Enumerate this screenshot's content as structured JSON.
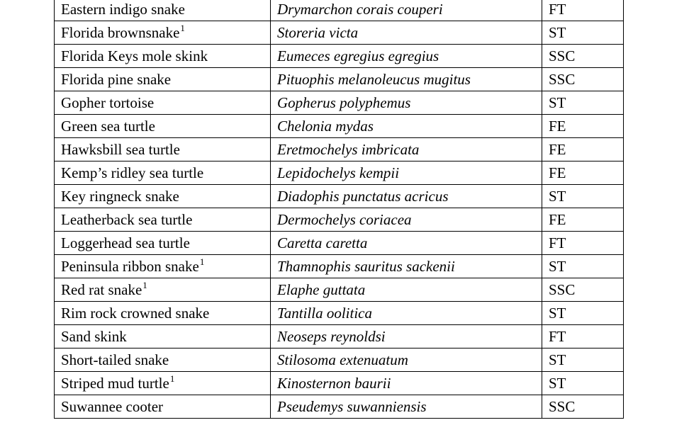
{
  "table": {
    "rows": [
      {
        "common": "Eastern indigo snake",
        "footnote": "",
        "scientific": "Drymarchon corais couperi",
        "status": "FT"
      },
      {
        "common": "Florida brownsnake",
        "footnote": "1",
        "scientific": "Storeria victa",
        "status": "ST"
      },
      {
        "common": "Florida Keys mole skink",
        "footnote": "",
        "scientific": "Eumeces egregius egregius",
        "status": "SSC"
      },
      {
        "common": "Florida pine snake",
        "footnote": "",
        "scientific": "Pituophis melanoleucus mugitus",
        "status": "SSC"
      },
      {
        "common": "Gopher tortoise",
        "footnote": "",
        "scientific": "Gopherus polyphemus",
        "status": "ST"
      },
      {
        "common": "Green sea turtle",
        "footnote": "",
        "scientific": "Chelonia mydas",
        "status": "FE"
      },
      {
        "common": "Hawksbill sea turtle",
        "footnote": "",
        "scientific": "Eretmochelys imbricata",
        "status": "FE"
      },
      {
        "common": "Kemp’s ridley sea turtle",
        "footnote": "",
        "scientific": "Lepidochelys kempii",
        "status": "FE"
      },
      {
        "common": "Key ringneck snake",
        "footnote": "",
        "scientific": "Diadophis punctatus acricus",
        "status": "ST"
      },
      {
        "common": "Leatherback sea turtle",
        "footnote": "",
        "scientific": "Dermochelys coriacea",
        "status": "FE"
      },
      {
        "common": "Loggerhead sea turtle",
        "footnote": "",
        "scientific": "Caretta caretta",
        "status": "FT"
      },
      {
        "common": "Peninsula ribbon snake",
        "footnote": "1",
        "scientific": "Thamnophis sauritus sackenii",
        "status": "ST"
      },
      {
        "common": "Red rat snake",
        "footnote": "1",
        "scientific": "Elaphe guttata",
        "status": "SSC"
      },
      {
        "common": "Rim rock crowned snake",
        "footnote": "",
        "scientific": "Tantilla oolitica",
        "status": "ST"
      },
      {
        "common": "Sand skink",
        "footnote": "",
        "scientific": "Neoseps reynoldsi",
        "status": "FT"
      },
      {
        "common": "Short-tailed snake",
        "footnote": "",
        "scientific": "Stilosoma extenuatum",
        "status": "ST"
      },
      {
        "common": "Striped mud turtle",
        "footnote": "1",
        "scientific": "Kinosternon baurii",
        "status": "ST"
      },
      {
        "common": "Suwannee cooter",
        "footnote": "",
        "scientific": "Pseudemys suwanniensis",
        "status": "SSC"
      }
    ]
  }
}
